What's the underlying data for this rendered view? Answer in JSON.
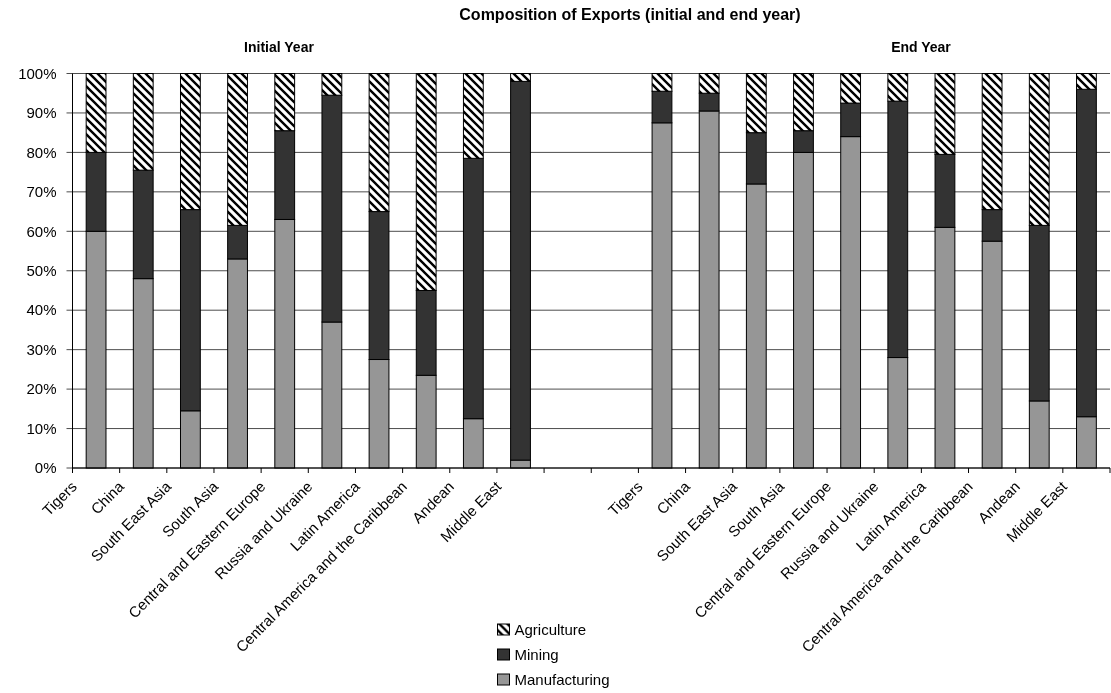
{
  "chart_data": {
    "type": "bar",
    "title": "Composition of Exports (initial and end year)",
    "annotations": [
      "Initial Year",
      "End Year"
    ],
    "categories": [
      "Tigers",
      "China",
      "South East Asia",
      "South Asia",
      "Central and Eastern Europe",
      "Russia and Ukraine",
      "Latin America",
      "Central America and the Caribbean",
      "Andean",
      "Middle East",
      null,
      null,
      "Tigers",
      "China",
      "South East Asia",
      "South Asia",
      "Central and Eastern Europe",
      "Russia and Ukraine",
      "Latin America",
      "Central America and the Caribbean",
      "Andean",
      "Middle East"
    ],
    "stacked": true,
    "series": [
      {
        "name": "Manufacturing",
        "color": "#969696",
        "values": [
          60,
          48,
          14.5,
          53,
          63,
          37,
          27.5,
          23.5,
          12.5,
          2,
          null,
          null,
          87.5,
          90.5,
          72,
          80,
          84,
          28,
          61,
          57.5,
          17,
          13
        ]
      },
      {
        "name": "Mining",
        "color": "#333333",
        "values": [
          20,
          27.5,
          51,
          8.5,
          22.5,
          57.5,
          37.5,
          21.5,
          66,
          96,
          null,
          null,
          8,
          4.5,
          13,
          5.5,
          8.5,
          65,
          18.5,
          8,
          44.5,
          83
        ]
      },
      {
        "name": "Agriculture",
        "color": "#000000",
        "values": [
          20,
          24.5,
          34.5,
          38.5,
          14.5,
          5.5,
          35,
          55,
          21.5,
          2,
          null,
          null,
          4.5,
          5,
          15,
          14.5,
          7.5,
          7,
          20.5,
          34.5,
          38.5,
          4
        ]
      }
    ],
    "ylim": [
      0,
      100
    ],
    "yticks": [
      {
        "value": 0,
        "label": "0%"
      },
      {
        "value": 10,
        "label": "10%"
      },
      {
        "value": 20,
        "label": "20%"
      },
      {
        "value": 30,
        "label": "30%"
      },
      {
        "value": 40,
        "label": "40%"
      },
      {
        "value": 50,
        "label": "50%"
      },
      {
        "value": 60,
        "label": "60%"
      },
      {
        "value": 70,
        "label": "70%"
      },
      {
        "value": 80,
        "label": "80%"
      },
      {
        "value": 90,
        "label": "90%"
      },
      {
        "value": 100,
        "label": "100%"
      }
    ],
    "grid": "y",
    "legend": "bottom"
  }
}
